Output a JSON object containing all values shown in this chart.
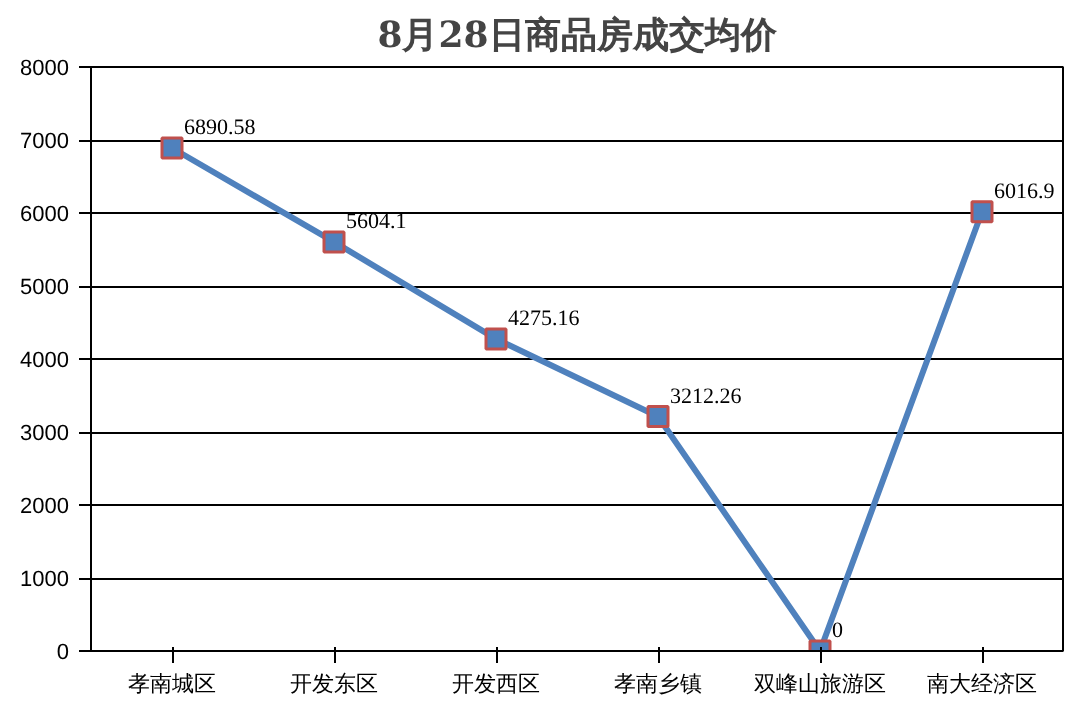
{
  "chart_data": {
    "type": "line",
    "title": "8月28日商品房成交均价",
    "categories": [
      "孝南城区",
      "开发东区",
      "开发西区",
      "孝南乡镇",
      "双峰山旅游区",
      "南大经济区"
    ],
    "series": [
      {
        "color": "#4f81bd",
        "values": [
          6890.58,
          5604.1,
          4275.16,
          3212.26,
          0,
          6016.9
        ]
      }
    ],
    "ylim": [
      0,
      8000
    ],
    "yticks": [
      0,
      1000,
      2000,
      3000,
      4000,
      5000,
      6000,
      7000,
      8000
    ],
    "grid": "y",
    "marker": "square",
    "line_style": "solid",
    "data_labels": true
  }
}
